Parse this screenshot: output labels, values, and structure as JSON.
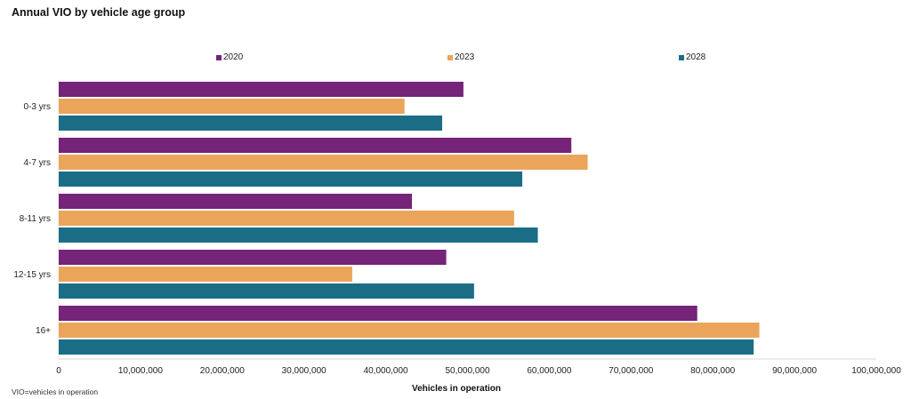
{
  "chart_data": {
    "type": "bar",
    "orientation": "horizontal",
    "title": "Annual VIO by vehicle age group",
    "xlabel": "Vehicles in operation",
    "ylabel": "",
    "xlim": [
      0,
      100000000
    ],
    "x_ticks": [
      0,
      10000000,
      20000000,
      30000000,
      40000000,
      50000000,
      60000000,
      70000000,
      80000000,
      90000000,
      100000000
    ],
    "x_tick_labels": [
      "0",
      "10,000,000",
      "20,000,000",
      "30,000,000",
      "40,000,000",
      "50,000,000",
      "60,000,000",
      "70,000,000",
      "80,000,000",
      "90,000,000",
      "100,000,000"
    ],
    "grid": false,
    "legend_position": "top",
    "categories": [
      "0-3 yrs",
      "4-7 yrs",
      "8-11 yrs",
      "12-15 yrs",
      "16+"
    ],
    "series": [
      {
        "name": "2020",
        "color": "#76237a",
        "values": [
          49500000,
          62700000,
          43200000,
          47400000,
          78100000
        ]
      },
      {
        "name": "2023",
        "color": "#eba55a",
        "values": [
          42300000,
          64700000,
          55700000,
          35900000,
          85700000
        ]
      },
      {
        "name": "2028",
        "color": "#1b6d85",
        "values": [
          46900000,
          56700000,
          58600000,
          50800000,
          85000000
        ]
      }
    ],
    "footnote": "VIO=vehicles in operation"
  }
}
